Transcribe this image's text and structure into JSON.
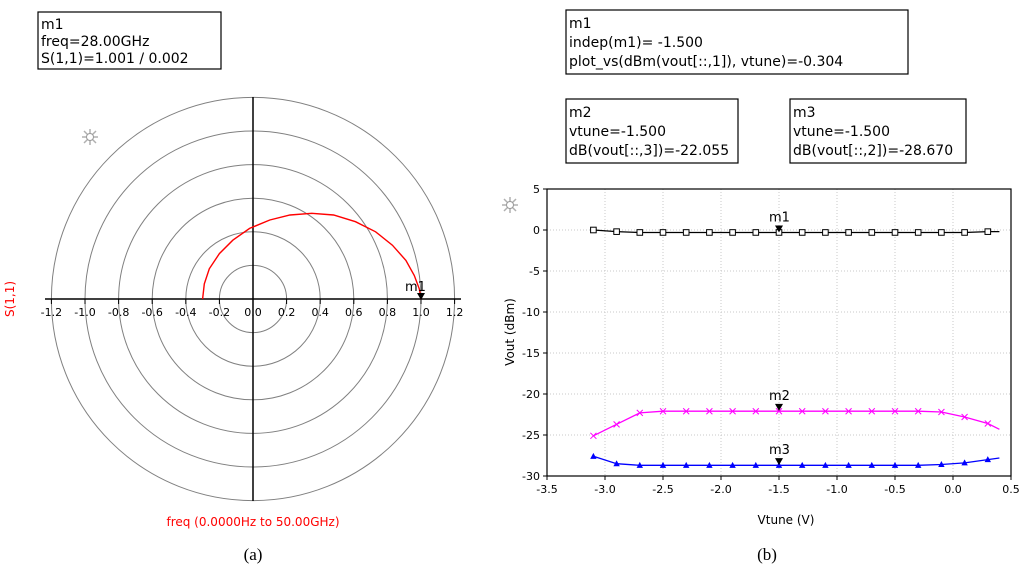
{
  "chart_data": [
    {
      "type": "scatter",
      "subtype": "smith-polar",
      "ylabel": "S(1,1)",
      "xlabel": "freq (0.0000Hz to 50.00GHz)",
      "caption": "(a)",
      "ticks": [
        "-1.2",
        "-1.0",
        "-0.8",
        "-0.6",
        "-0.4",
        "-0.2",
        "0.0",
        "0.2",
        "0.4",
        "0.6",
        "0.8",
        "1.0",
        "1.2"
      ],
      "tick_values": [
        -1.2,
        -1.0,
        -0.8,
        -0.6,
        -0.4,
        -0.2,
        0.0,
        0.2,
        0.4,
        0.6,
        0.8,
        1.0,
        1.2
      ],
      "rings": [
        0.2,
        0.4,
        0.6,
        0.8,
        1.0,
        1.2
      ],
      "series": [
        {
          "color": "#ff0000",
          "x": [
            -0.3,
            -0.29,
            -0.26,
            -0.2,
            -0.12,
            -0.02,
            0.1,
            0.22,
            0.35,
            0.48,
            0.61,
            0.73,
            0.83,
            0.91,
            0.96,
            0.99,
            1.0
          ],
          "y": [
            0.0,
            0.09,
            0.18,
            0.27,
            0.35,
            0.42,
            0.47,
            0.5,
            0.51,
            0.5,
            0.46,
            0.4,
            0.32,
            0.23,
            0.14,
            0.06,
            0.0
          ]
        }
      ],
      "marker": {
        "name": "m1",
        "x": 1.0,
        "y": 0.0,
        "lines": [
          "m1",
          "freq=28.00GHz",
          "S(1,1)=1.001 / 0.002"
        ]
      }
    },
    {
      "type": "line",
      "xlabel": "Vtune (V)",
      "ylabel": "Vout (dBm)",
      "caption": "(b)",
      "xlim": [
        -3.5,
        0.5
      ],
      "ylim": [
        -30,
        5
      ],
      "xticks": [
        "-3.5",
        "-3.0",
        "-2.5",
        "-2.0",
        "-1.5",
        "-1.0",
        "-0.5",
        "0.0",
        "0.5"
      ],
      "xtick_values": [
        -3.5,
        -3.0,
        -2.5,
        -2.0,
        -1.5,
        -1.0,
        -0.5,
        0.0,
        0.5
      ],
      "yticks": [
        "5",
        "0",
        "-5",
        "-10",
        "-15",
        "-20",
        "-25",
        "-30"
      ],
      "ytick_values": [
        5,
        0,
        -5,
        -10,
        -15,
        -20,
        -25,
        -30
      ],
      "grid": true,
      "x": [
        -3.1,
        -2.9,
        -2.7,
        -2.5,
        -2.3,
        -2.1,
        -1.9,
        -1.7,
        -1.5,
        -1.3,
        -1.1,
        -0.9,
        -0.7,
        -0.5,
        -0.3,
        -0.1,
        0.1,
        0.3
      ],
      "series": [
        {
          "color": "#000000",
          "marker": "square",
          "values": [
            0.0,
            -0.2,
            -0.3,
            -0.3,
            -0.3,
            -0.3,
            -0.3,
            -0.3,
            -0.3,
            -0.3,
            -0.3,
            -0.3,
            -0.3,
            -0.3,
            -0.3,
            -0.3,
            -0.3,
            -0.2
          ],
          "tail": [
            0.4,
            -0.2
          ]
        },
        {
          "color": "#ff00ff",
          "marker": "cross",
          "values": [
            -25.1,
            -23.7,
            -22.3,
            -22.1,
            -22.1,
            -22.1,
            -22.1,
            -22.1,
            -22.1,
            -22.1,
            -22.1,
            -22.1,
            -22.1,
            -22.1,
            -22.1,
            -22.2,
            -22.8,
            -23.6
          ],
          "tail": [
            0.4,
            -24.3
          ]
        },
        {
          "color": "#0000ff",
          "marker": "triangle",
          "values": [
            -27.6,
            -28.5,
            -28.7,
            -28.7,
            -28.7,
            -28.7,
            -28.7,
            -28.7,
            -28.7,
            -28.7,
            -28.7,
            -28.7,
            -28.7,
            -28.7,
            -28.7,
            -28.6,
            -28.4,
            -28.0
          ],
          "tail": [
            0.4,
            -27.8
          ]
        }
      ],
      "markers": [
        {
          "name": "m1",
          "x": -1.5,
          "y": -0.304,
          "lines": [
            "m1",
            "indep(m1)=  -1.500",
            "plot_vs(dBm(vout[::,1]),  vtune)=-0.304"
          ]
        },
        {
          "name": "m2",
          "x": -1.5,
          "y": -22.055,
          "lines": [
            "m2",
            "vtune=-1.500",
            "dB(vout[::,3])=-22.055"
          ]
        },
        {
          "name": "m3",
          "x": -1.5,
          "y": -28.67,
          "lines": [
            "m3",
            "vtune=-1.500",
            "dB(vout[::,2])=-28.670"
          ]
        }
      ]
    }
  ]
}
